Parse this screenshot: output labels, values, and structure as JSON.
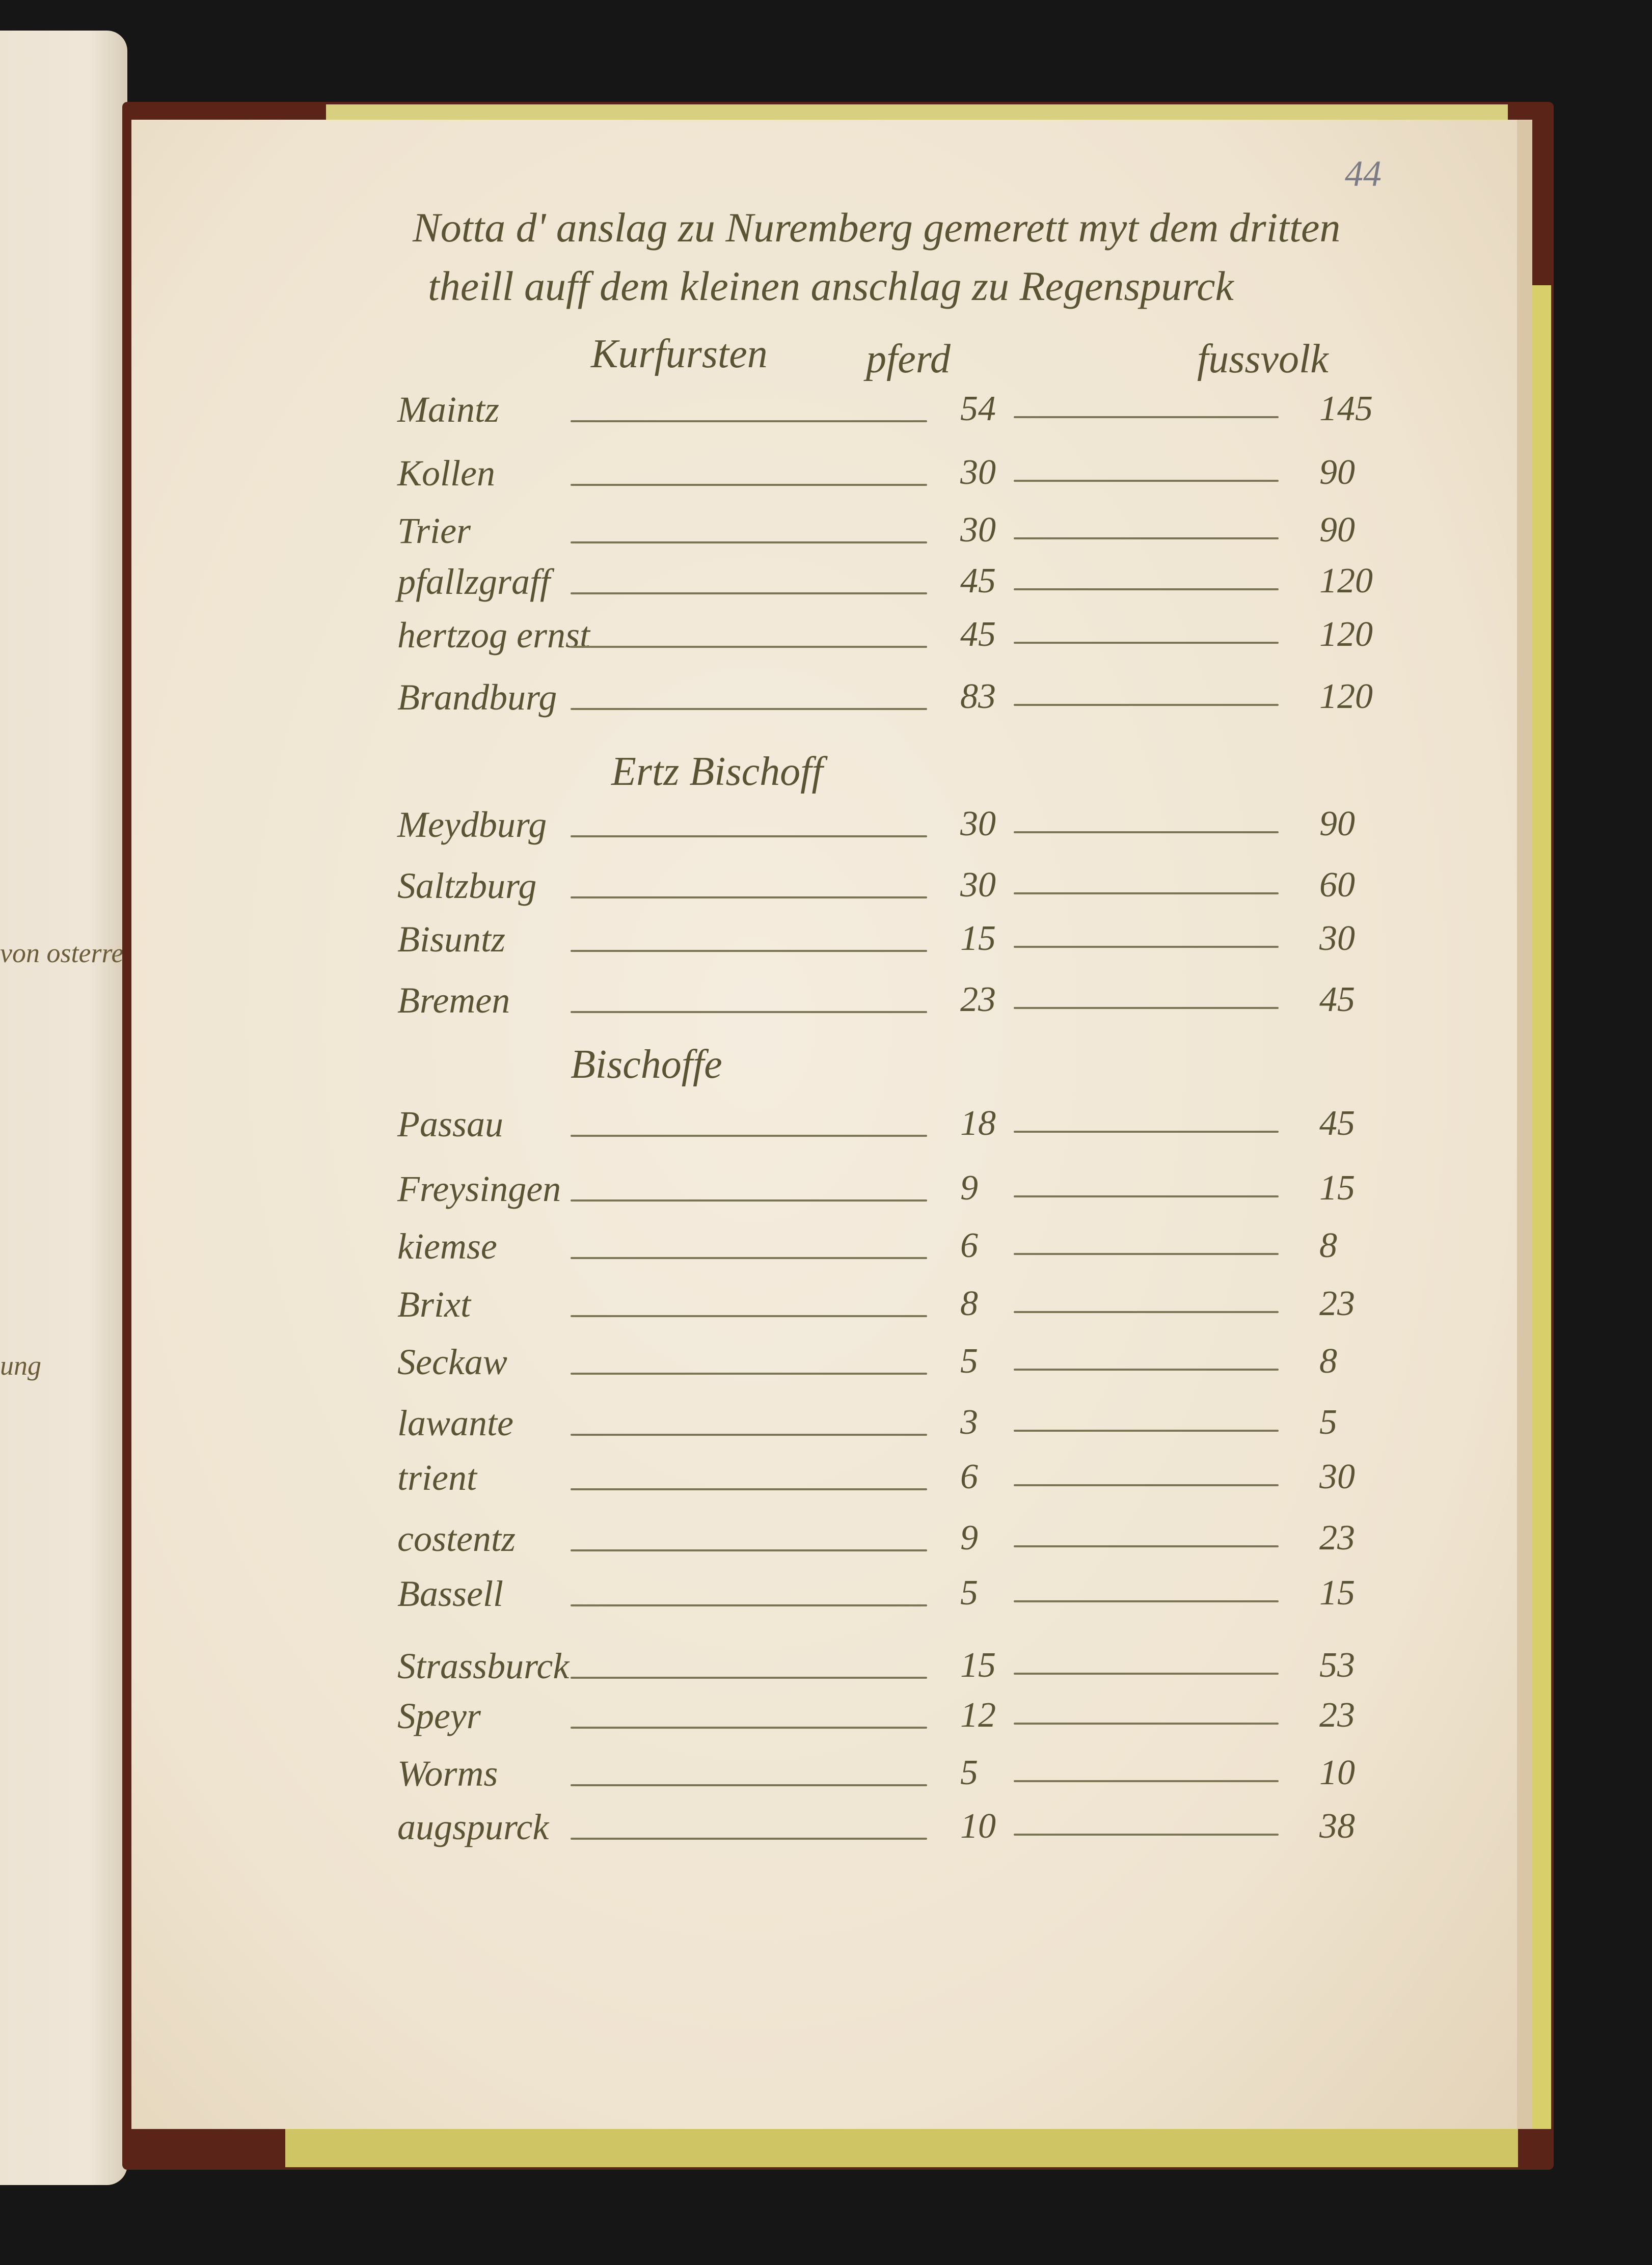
{
  "left_page": {
    "margin_notes": [
      "von osterreich",
      "ung"
    ]
  },
  "right_page": {
    "folio_number": "44",
    "title_lines": [
      "Notta d' anslag zu Nuremberg gemerett myt dem dritten",
      "theill auff dem kleinen anschlag zu Regenspurck"
    ],
    "column_headers": {
      "name": "Kurfursten",
      "horse": "pferd",
      "foot": "fussvolk"
    },
    "sections": [
      {
        "heading": "",
        "rows": [
          {
            "name": "Maintz",
            "horse": "54",
            "foot": "145"
          },
          {
            "name": "Kollen",
            "horse": "30",
            "foot": "90"
          },
          {
            "name": "Trier",
            "horse": "30",
            "foot": "90"
          },
          {
            "name": "pfallzgraff",
            "horse": "45",
            "foot": "120"
          },
          {
            "name": "hertzog ernst",
            "horse": "45",
            "foot": "120"
          },
          {
            "name": "Brandburg",
            "horse": "83",
            "foot": "120"
          }
        ]
      },
      {
        "heading": "Ertz Bischoff",
        "rows": [
          {
            "name": "Meydburg",
            "horse": "30",
            "foot": "90"
          },
          {
            "name": "Saltzburg",
            "horse": "30",
            "foot": "60"
          },
          {
            "name": "Bisuntz",
            "horse": "15",
            "foot": "30"
          },
          {
            "name": "Bremen",
            "horse": "23",
            "foot": "45"
          }
        ]
      },
      {
        "heading": "Bischoffe",
        "rows": [
          {
            "name": "Passau",
            "horse": "18",
            "foot": "45"
          },
          {
            "name": "Freysingen",
            "horse": "9",
            "foot": "15"
          },
          {
            "name": "kiemse",
            "horse": "6",
            "foot": "8"
          },
          {
            "name": "Brixt",
            "horse": "8",
            "foot": "23"
          },
          {
            "name": "Seckaw",
            "horse": "5",
            "foot": "8"
          },
          {
            "name": "lawante",
            "horse": "3",
            "foot": "5"
          },
          {
            "name": "trient",
            "horse": "6",
            "foot": "30"
          },
          {
            "name": "costentz",
            "horse": "9",
            "foot": "23"
          },
          {
            "name": "Bassell",
            "horse": "5",
            "foot": "15"
          },
          {
            "name": "Strassburck",
            "horse": "15",
            "foot": "53"
          },
          {
            "name": "Speyr",
            "horse": "12",
            "foot": "23"
          },
          {
            "name": "Worms",
            "horse": "5",
            "foot": "10"
          },
          {
            "name": "augspurck",
            "horse": "10",
            "foot": "38"
          }
        ]
      }
    ]
  },
  "colors": {
    "ink": "#5b5434",
    "paper": "#f1e7d5",
    "binding": "#5a2418",
    "yellow_guard": "#d9cf6a",
    "background": "#161616"
  }
}
